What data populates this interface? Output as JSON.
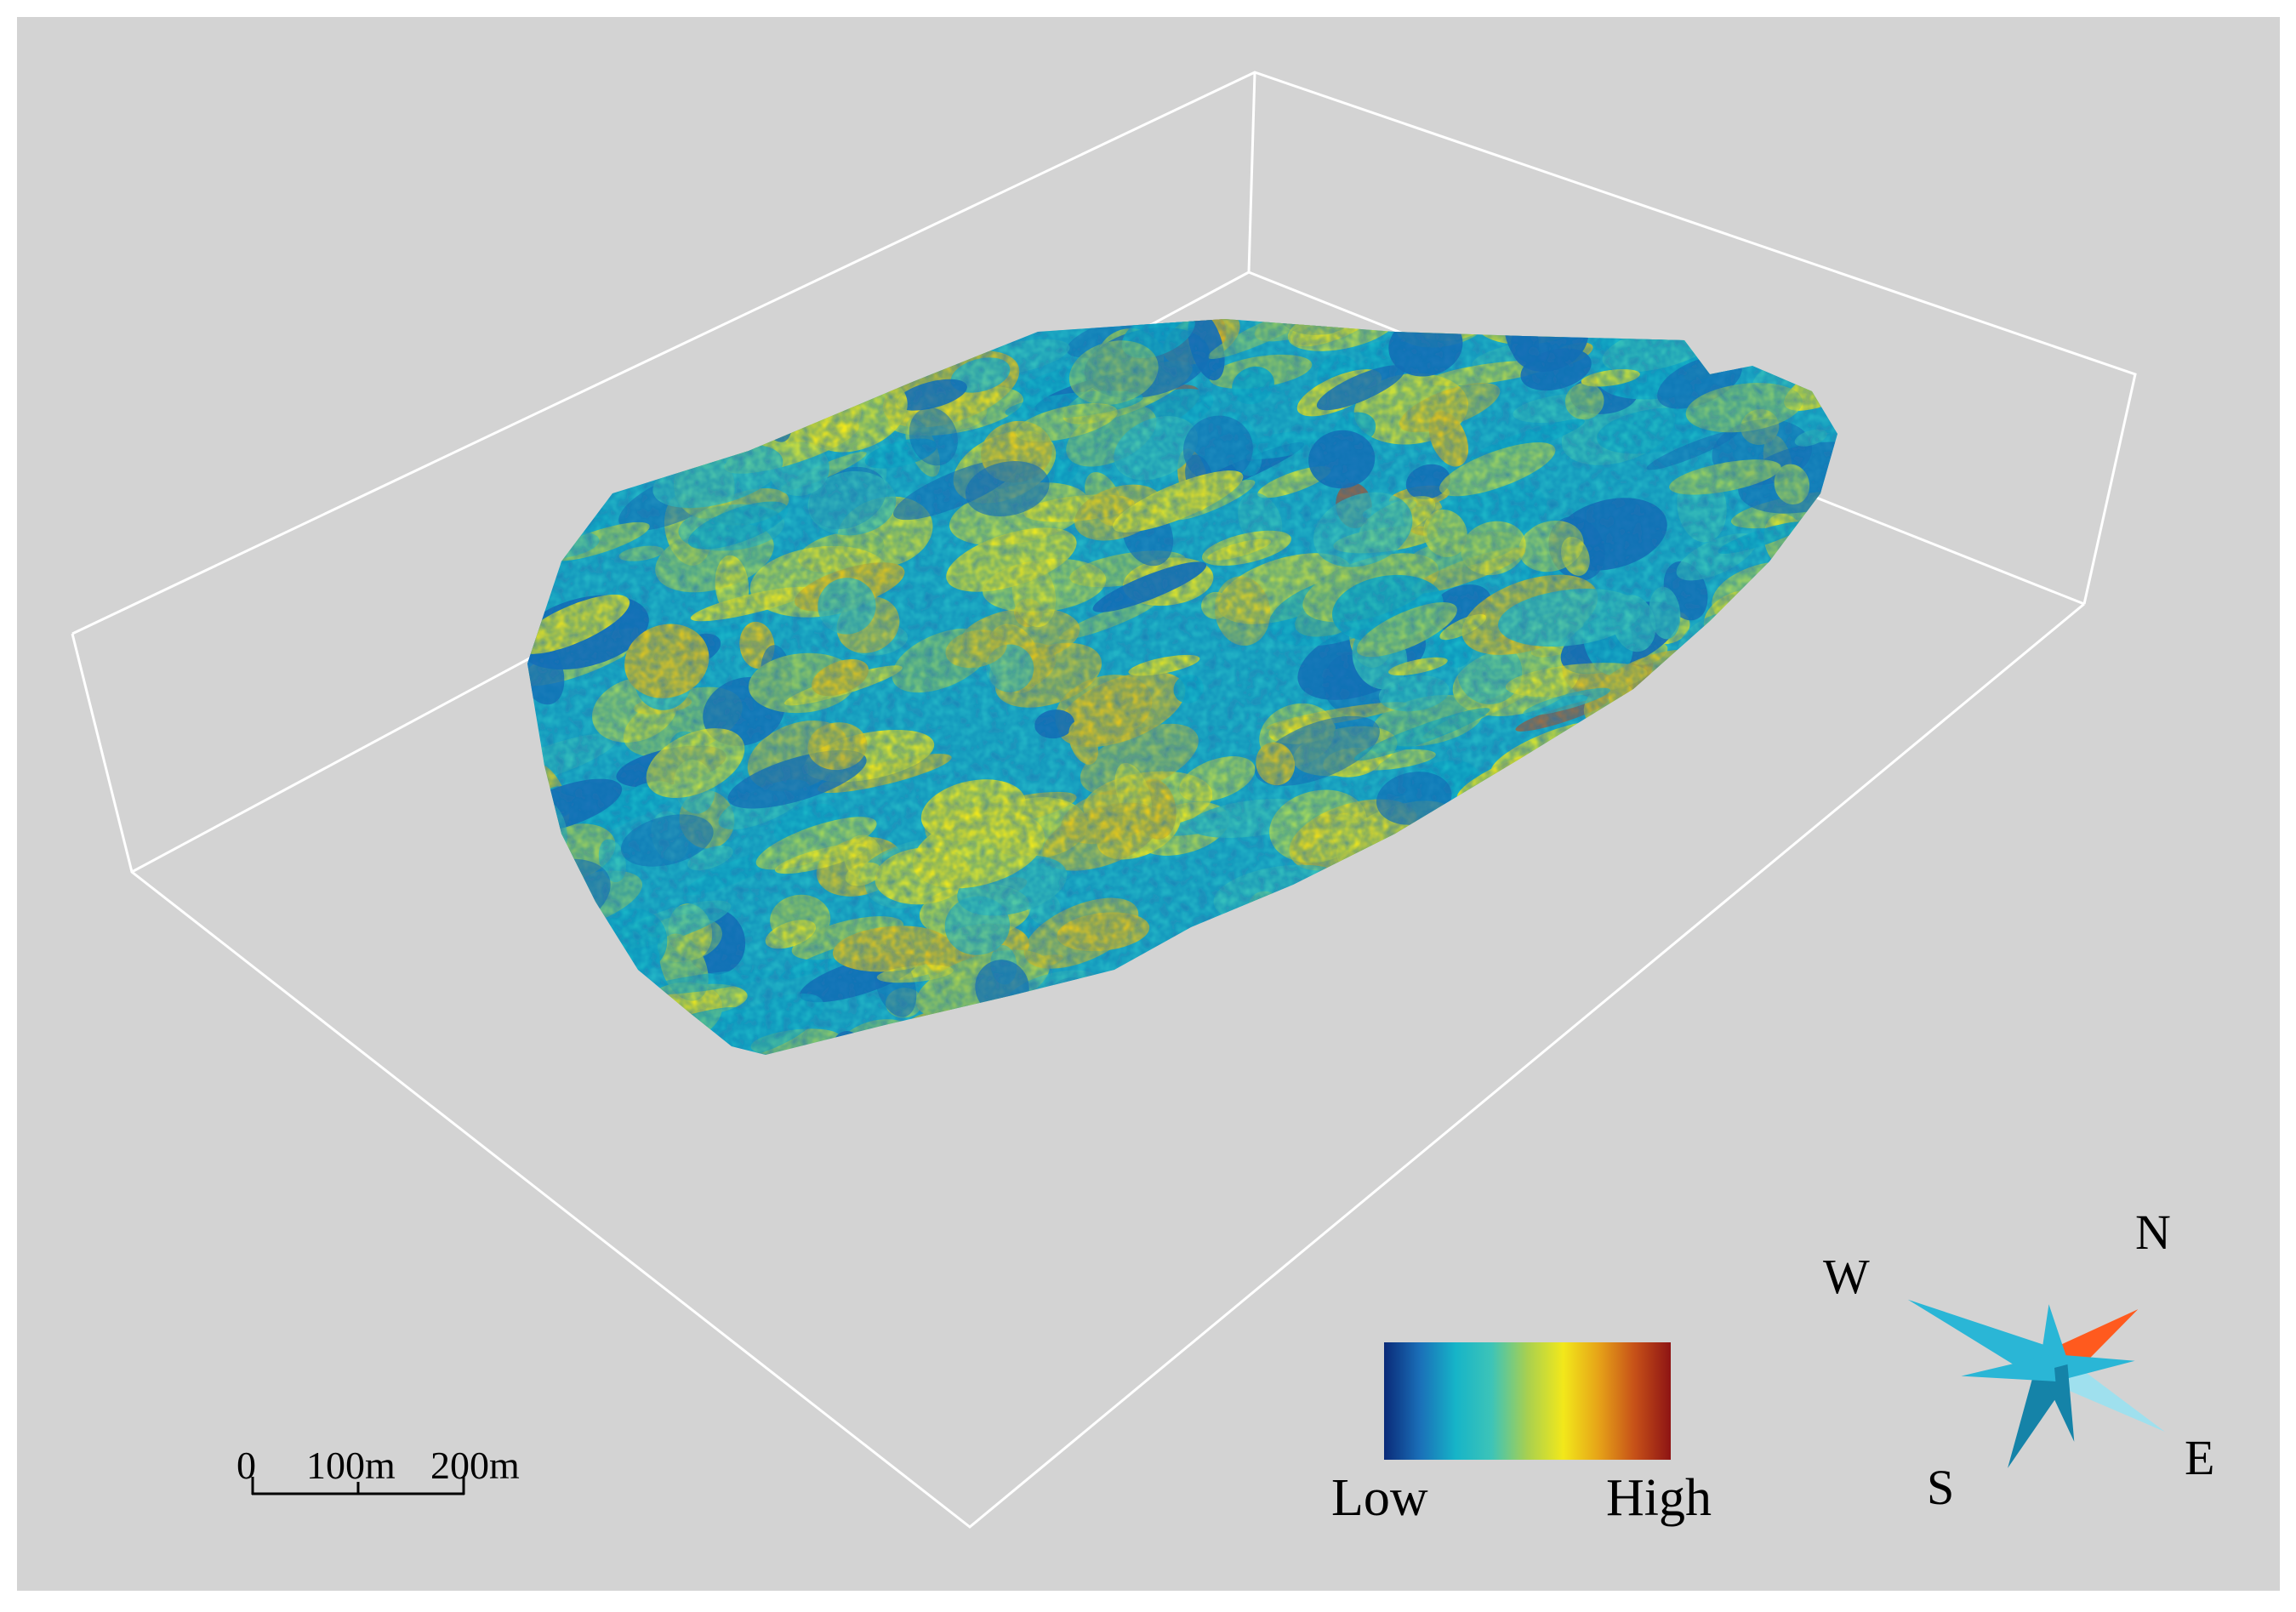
{
  "scale_bar": {
    "ticks": [
      "0",
      "100m",
      "200m"
    ]
  },
  "legend": {
    "low_label": "Low",
    "high_label": "High",
    "colors": [
      "#0a2a78",
      "#1a6fb8",
      "#16b4c8",
      "#3dc4b8",
      "#a8d050",
      "#f2e81a",
      "#e6a218",
      "#c65018",
      "#8e1414"
    ]
  },
  "compass": {
    "north": "N",
    "south": "S",
    "east": "E",
    "west": "W",
    "colors": {
      "north_arm": "#ff5a1e",
      "arms": "#2ab6d6",
      "arms_light": "#9fe0ee",
      "arms_dark": "#1583a8"
    }
  },
  "surface": {
    "palette": [
      "#1a6fb8",
      "#16b4c8",
      "#3dc4b8",
      "#a8d050",
      "#f2e81a",
      "#e6c418",
      "#c65018"
    ]
  }
}
